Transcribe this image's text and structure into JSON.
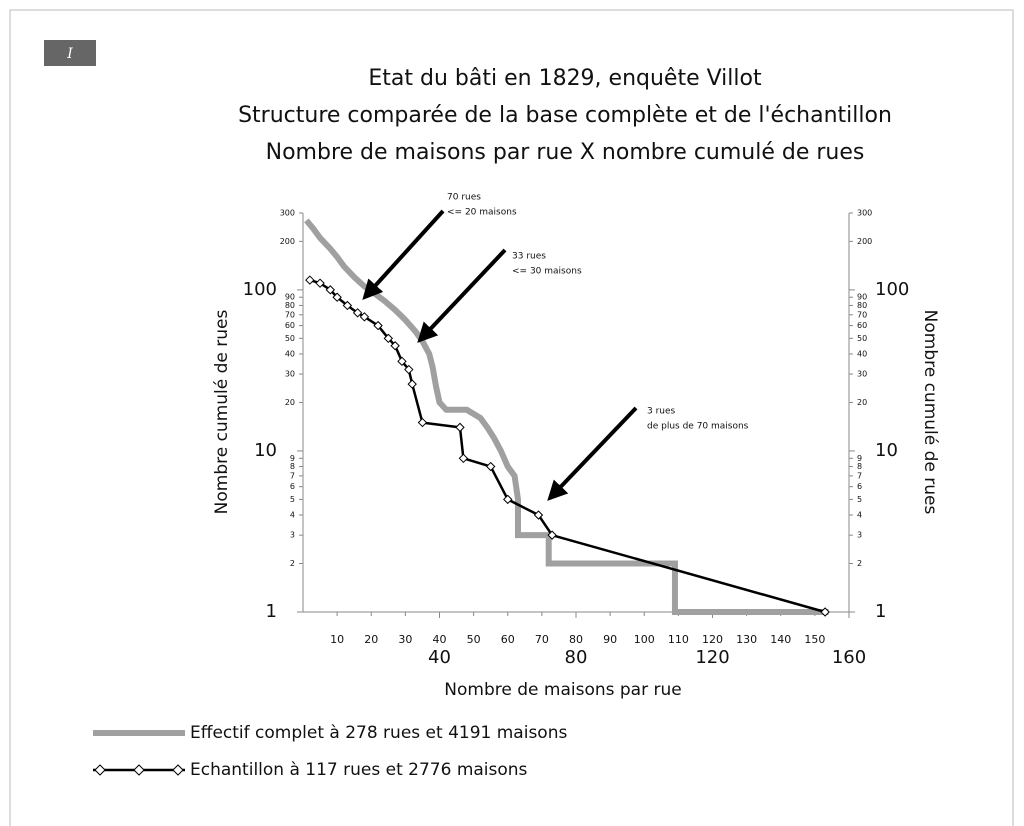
{
  "chart_data": {
    "type": "line",
    "badge": "I",
    "title": [
      "Etat du bâti en 1829, enquête Villot",
      "Structure comparée de la base complète et de l'échantillon",
      "Nombre de maisons par rue X nombre cumulé de rues"
    ],
    "xlabel": "Nombre de maisons par rue",
    "ylabel": "Nombre cumulé de rues",
    "y2label": "Nombre cumulé de rues",
    "xlim": [
      0,
      160
    ],
    "xticks": [
      40,
      80,
      120,
      160
    ],
    "xticks_minor": [
      10,
      20,
      30,
      40,
      50,
      60,
      70,
      80,
      90,
      100,
      110,
      120,
      130,
      140,
      150
    ],
    "ylim": [
      1,
      300
    ],
    "yscale": "log",
    "yticks": [
      1,
      10,
      100
    ],
    "yticks_minor": [
      2,
      3,
      4,
      5,
      6,
      7,
      8,
      9,
      20,
      30,
      40,
      50,
      60,
      70,
      80,
      90,
      200,
      300
    ],
    "series": [
      {
        "name": "Effectif complet à 278 rues et 4191 maisons",
        "color": "#a0a0a0",
        "marker": "none",
        "x": [
          1,
          3,
          5,
          8,
          10,
          12,
          15,
          18,
          21,
          24,
          27,
          30,
          33,
          35,
          37,
          38,
          39,
          40,
          42,
          48,
          52,
          54,
          56,
          58,
          60,
          62,
          63,
          63,
          72,
          72,
          109,
          109,
          154
        ],
        "values": [
          270,
          240,
          210,
          180,
          160,
          140,
          120,
          105,
          95,
          85,
          75,
          65,
          55,
          48,
          40,
          33,
          25,
          20,
          18,
          18,
          16,
          14,
          12,
          10,
          8,
          7,
          5,
          3,
          3,
          2,
          2,
          1,
          1
        ]
      },
      {
        "name": "Echantillon à 117 rues et 2776 maisons",
        "color": "#000000",
        "marker": "diamond",
        "x": [
          2,
          5,
          8,
          10,
          13,
          16,
          18,
          22,
          25,
          27,
          29,
          31,
          32,
          35,
          46,
          47,
          55,
          60,
          69,
          73,
          153
        ],
        "values": [
          115,
          110,
          100,
          90,
          80,
          72,
          68,
          60,
          50,
          45,
          36,
          32,
          26,
          15,
          14,
          9,
          8,
          5,
          4,
          3,
          1
        ]
      }
    ],
    "annotations": [
      [
        "70 rues",
        "<= 20 maisons"
      ],
      [
        "33 rues",
        "<= 30 maisons"
      ],
      [
        "3 rues",
        "de plus de 70 maisons"
      ]
    ]
  }
}
